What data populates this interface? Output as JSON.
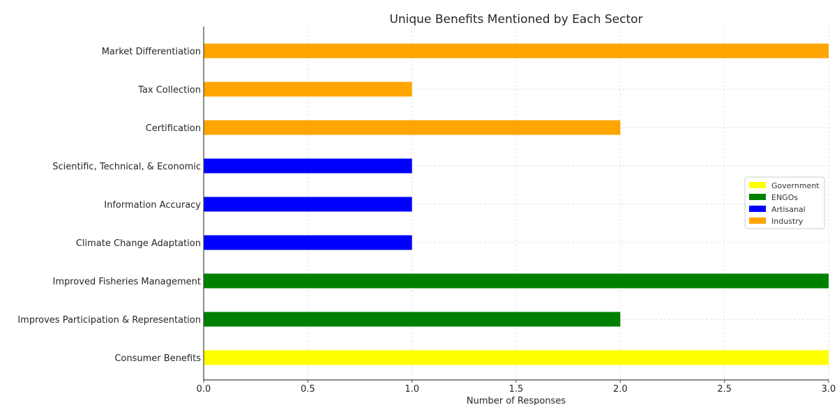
{
  "chart_data": {
    "type": "bar",
    "orientation": "horizontal",
    "title": "Unique Benefits Mentioned by Each Sector",
    "xlabel": "Number of Responses",
    "ylabel": "",
    "xlim": [
      0,
      3
    ],
    "xticks": [
      "0.0",
      "0.5",
      "1.0",
      "1.5",
      "2.0",
      "2.5",
      "3.0"
    ],
    "grid": true,
    "legend_position": "center-right",
    "categories": [
      "Market Differentiation",
      "Tax Collection",
      "Certification",
      "Scientific, Technical, & Economic",
      "Information Accuracy",
      "Climate Change Adaptation",
      "Improved Fisheries Management",
      "Improves Participation & Representation",
      "Consumer Benefits"
    ],
    "values": [
      3,
      1,
      2,
      1,
      1,
      1,
      3,
      2,
      3
    ],
    "bar_sector": [
      "Industry",
      "Industry",
      "Industry",
      "Artisanal",
      "Artisanal",
      "Artisanal",
      "ENGOs",
      "ENGOs",
      "Government"
    ],
    "legend": [
      {
        "name": "Government",
        "color": "#ffff00"
      },
      {
        "name": "ENGOs",
        "color": "#008000"
      },
      {
        "name": "Artisanal",
        "color": "#0000ff"
      },
      {
        "name": "Industry",
        "color": "#ffa500"
      }
    ]
  }
}
